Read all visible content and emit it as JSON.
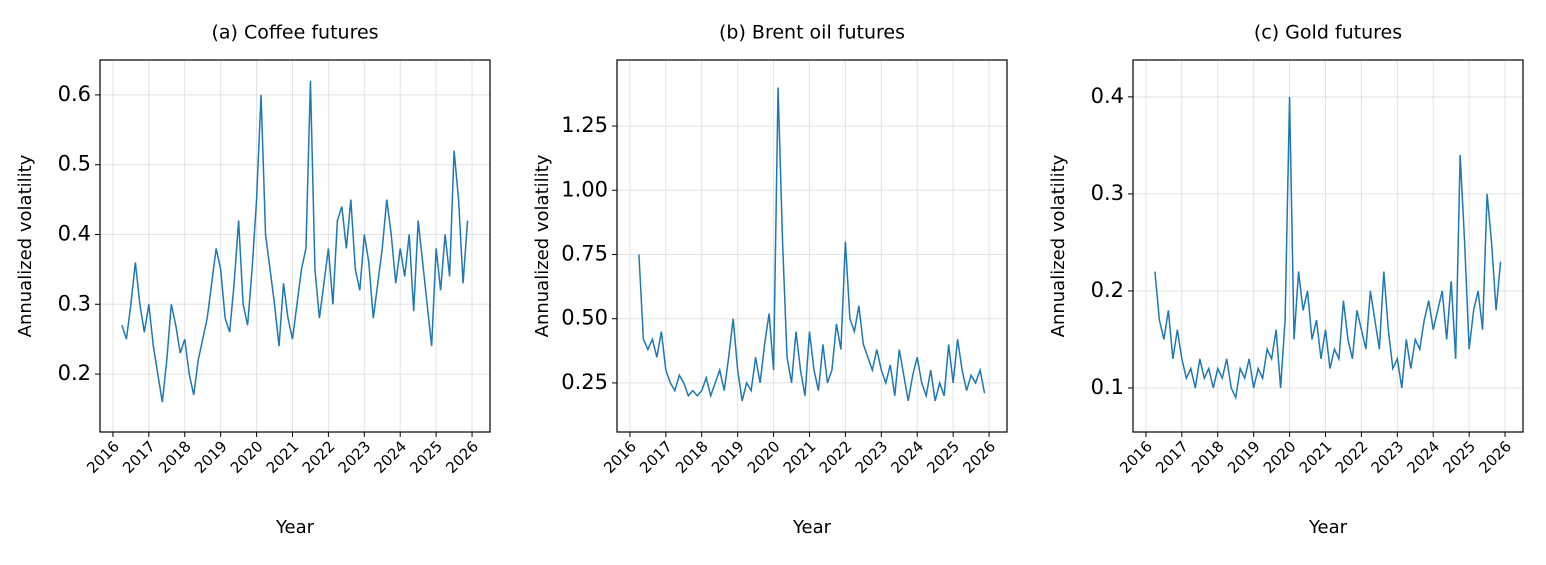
{
  "chart_data": [
    {
      "type": "line",
      "title": "(a) Coffee futures",
      "xlabel": "Year",
      "ylabel": "Annualized volatility",
      "color": "#1f77b4",
      "grid": true,
      "x": [
        2016.25,
        2016.375,
        2016.5,
        2016.625,
        2016.75,
        2016.875,
        2017,
        2017.125,
        2017.25,
        2017.375,
        2017.5,
        2017.625,
        2017.75,
        2017.875,
        2018,
        2018.125,
        2018.25,
        2018.375,
        2018.5,
        2018.625,
        2018.75,
        2018.875,
        2019,
        2019.125,
        2019.25,
        2019.375,
        2019.5,
        2019.625,
        2019.75,
        2019.875,
        2020,
        2020.125,
        2020.25,
        2020.375,
        2020.5,
        2020.625,
        2020.75,
        2020.875,
        2021,
        2021.125,
        2021.25,
        2021.375,
        2021.5,
        2021.625,
        2021.75,
        2021.875,
        2022,
        2022.125,
        2022.25,
        2022.375,
        2022.5,
        2022.625,
        2022.75,
        2022.875,
        2023,
        2023.125,
        2023.25,
        2023.375,
        2023.5,
        2023.625,
        2023.75,
        2023.875,
        2024,
        2024.125,
        2024.25,
        2024.375,
        2024.5,
        2024.625,
        2024.75,
        2024.875,
        2025,
        2025.125,
        2025.25,
        2025.375,
        2025.5,
        2025.625,
        2025.75,
        2025.875
      ],
      "values": [
        0.27,
        0.25,
        0.3,
        0.36,
        0.3,
        0.26,
        0.3,
        0.24,
        0.2,
        0.16,
        0.22,
        0.3,
        0.27,
        0.23,
        0.25,
        0.2,
        0.17,
        0.22,
        0.25,
        0.28,
        0.33,
        0.38,
        0.35,
        0.28,
        0.26,
        0.33,
        0.42,
        0.3,
        0.27,
        0.35,
        0.45,
        0.6,
        0.4,
        0.35,
        0.3,
        0.24,
        0.33,
        0.28,
        0.25,
        0.3,
        0.35,
        0.38,
        0.62,
        0.35,
        0.28,
        0.33,
        0.38,
        0.3,
        0.42,
        0.44,
        0.38,
        0.45,
        0.35,
        0.32,
        0.4,
        0.36,
        0.28,
        0.33,
        0.38,
        0.45,
        0.4,
        0.33,
        0.38,
        0.34,
        0.4,
        0.29,
        0.42,
        0.36,
        0.3,
        0.24,
        0.38,
        0.32,
        0.4,
        0.34,
        0.52,
        0.45,
        0.33,
        0.42
      ],
      "xlim": [
        2015.64,
        2026.5
      ],
      "xticks": [
        2016,
        2017,
        2018,
        2019,
        2020,
        2021,
        2022,
        2023,
        2024,
        2025,
        2026
      ],
      "ylim": [
        0.117,
        0.65
      ],
      "yticks": [
        0.2,
        0.3,
        0.4,
        0.5,
        0.6
      ]
    },
    {
      "type": "line",
      "title": "(b) Brent oil futures",
      "xlabel": "Year",
      "ylabel": "Annualized volatility",
      "color": "#1f77b4",
      "grid": true,
      "x": [
        2016.25,
        2016.375,
        2016.5,
        2016.625,
        2016.75,
        2016.875,
        2017,
        2017.125,
        2017.25,
        2017.375,
        2017.5,
        2017.625,
        2017.75,
        2017.875,
        2018,
        2018.125,
        2018.25,
        2018.375,
        2018.5,
        2018.625,
        2018.75,
        2018.875,
        2019,
        2019.125,
        2019.25,
        2019.375,
        2019.5,
        2019.625,
        2019.75,
        2019.875,
        2020,
        2020.125,
        2020.25,
        2020.375,
        2020.5,
        2020.625,
        2020.75,
        2020.875,
        2021,
        2021.125,
        2021.25,
        2021.375,
        2021.5,
        2021.625,
        2021.75,
        2021.875,
        2022,
        2022.125,
        2022.25,
        2022.375,
        2022.5,
        2022.625,
        2022.75,
        2022.875,
        2023,
        2023.125,
        2023.25,
        2023.375,
        2023.5,
        2023.625,
        2023.75,
        2023.875,
        2024,
        2024.125,
        2024.25,
        2024.375,
        2024.5,
        2024.625,
        2024.75,
        2024.875,
        2025,
        2025.125,
        2025.25,
        2025.375,
        2025.5,
        2025.625,
        2025.75,
        2025.875
      ],
      "values": [
        0.75,
        0.42,
        0.38,
        0.42,
        0.35,
        0.45,
        0.3,
        0.25,
        0.22,
        0.28,
        0.25,
        0.2,
        0.22,
        0.2,
        0.22,
        0.27,
        0.2,
        0.25,
        0.3,
        0.22,
        0.35,
        0.5,
        0.3,
        0.18,
        0.25,
        0.22,
        0.35,
        0.25,
        0.4,
        0.52,
        0.3,
        1.4,
        0.8,
        0.35,
        0.25,
        0.45,
        0.3,
        0.2,
        0.45,
        0.3,
        0.22,
        0.4,
        0.25,
        0.3,
        0.48,
        0.38,
        0.8,
        0.5,
        0.45,
        0.55,
        0.4,
        0.35,
        0.3,
        0.38,
        0.3,
        0.25,
        0.32,
        0.2,
        0.38,
        0.28,
        0.18,
        0.28,
        0.35,
        0.25,
        0.2,
        0.3,
        0.18,
        0.25,
        0.2,
        0.4,
        0.25,
        0.42,
        0.3,
        0.22,
        0.28,
        0.25,
        0.3,
        0.21
      ],
      "xlim": [
        2015.64,
        2026.5
      ],
      "xticks": [
        2016,
        2017,
        2018,
        2019,
        2020,
        2021,
        2022,
        2023,
        2024,
        2025,
        2026
      ],
      "ylim": [
        0.059,
        1.507
      ],
      "yticks": [
        0.25,
        {
          "value": 0.5,
          "label": "0.50"
        },
        0.75,
        {
          "value": 1,
          "label": "1.00"
        },
        1.25
      ]
    },
    {
      "type": "line",
      "title": "(c) Gold futures",
      "xlabel": "Year",
      "ylabel": "Annualized volatility",
      "color": "#1f77b4",
      "grid": true,
      "x": [
        2016.25,
        2016.375,
        2016.5,
        2016.625,
        2016.75,
        2016.875,
        2017,
        2017.125,
        2017.25,
        2017.375,
        2017.5,
        2017.625,
        2017.75,
        2017.875,
        2018,
        2018.125,
        2018.25,
        2018.375,
        2018.5,
        2018.625,
        2018.75,
        2018.875,
        2019,
        2019.125,
        2019.25,
        2019.375,
        2019.5,
        2019.625,
        2019.75,
        2019.875,
        2020,
        2020.125,
        2020.25,
        2020.375,
        2020.5,
        2020.625,
        2020.75,
        2020.875,
        2021,
        2021.125,
        2021.25,
        2021.375,
        2021.5,
        2021.625,
        2021.75,
        2021.875,
        2022,
        2022.125,
        2022.25,
        2022.375,
        2022.5,
        2022.625,
        2022.75,
        2022.875,
        2023,
        2023.125,
        2023.25,
        2023.375,
        2023.5,
        2023.625,
        2023.75,
        2023.875,
        2024,
        2024.125,
        2024.25,
        2024.375,
        2024.5,
        2024.625,
        2024.75,
        2024.875,
        2025,
        2025.125,
        2025.25,
        2025.375,
        2025.5,
        2025.625,
        2025.75,
        2025.875
      ],
      "values": [
        0.22,
        0.17,
        0.15,
        0.18,
        0.13,
        0.16,
        0.13,
        0.11,
        0.12,
        0.1,
        0.13,
        0.11,
        0.12,
        0.1,
        0.12,
        0.11,
        0.13,
        0.1,
        0.09,
        0.12,
        0.11,
        0.13,
        0.1,
        0.12,
        0.11,
        0.14,
        0.13,
        0.16,
        0.1,
        0.17,
        0.4,
        0.15,
        0.22,
        0.18,
        0.2,
        0.15,
        0.17,
        0.13,
        0.16,
        0.12,
        0.14,
        0.13,
        0.19,
        0.15,
        0.13,
        0.18,
        0.16,
        0.14,
        0.2,
        0.17,
        0.14,
        0.22,
        0.16,
        0.12,
        0.13,
        0.1,
        0.15,
        0.12,
        0.15,
        0.14,
        0.17,
        0.19,
        0.16,
        0.18,
        0.2,
        0.15,
        0.21,
        0.13,
        0.34,
        0.25,
        0.14,
        0.18,
        0.2,
        0.16,
        0.3,
        0.25,
        0.18,
        0.23
      ],
      "xlim": [
        2015.64,
        2026.5
      ],
      "xticks": [
        2016,
        2017,
        2018,
        2019,
        2020,
        2021,
        2022,
        2023,
        2024,
        2025,
        2026
      ],
      "ylim": [
        0.0546,
        0.438
      ],
      "yticks": [
        0.1,
        0.2,
        0.3,
        0.4
      ]
    }
  ]
}
